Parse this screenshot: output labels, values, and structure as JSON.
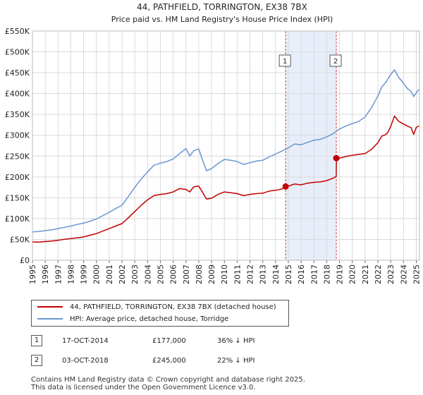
{
  "chart_data": {
    "type": "line",
    "title": "44, PATHFIELD, TORRINGTON, EX38 7BX",
    "subtitle": "Price paid vs. HM Land Registry's House Price Index (HPI)",
    "xlim": [
      1995.0,
      2025.25
    ],
    "ylim": [
      0,
      550000
    ],
    "yticks": [
      {
        "value": 0,
        "label": "£0"
      },
      {
        "value": 50000,
        "label": "£50K"
      },
      {
        "value": 100000,
        "label": "£100K"
      },
      {
        "value": 150000,
        "label": "£150K"
      },
      {
        "value": 200000,
        "label": "£200K"
      },
      {
        "value": 250000,
        "label": "£250K"
      },
      {
        "value": 300000,
        "label": "£300K"
      },
      {
        "value": 350000,
        "label": "£350K"
      },
      {
        "value": 400000,
        "label": "£400K"
      },
      {
        "value": 450000,
        "label": "£450K"
      },
      {
        "value": 500000,
        "label": "£500K"
      },
      {
        "value": 550000,
        "label": "£550K"
      }
    ],
    "xticks": [
      "1995",
      "1996",
      "1997",
      "1998",
      "1999",
      "2000",
      "2001",
      "2002",
      "2003",
      "2004",
      "2005",
      "2006",
      "2007",
      "2008",
      "2009",
      "2010",
      "2011",
      "2012",
      "2013",
      "2014",
      "2015",
      "2016",
      "2017",
      "2018",
      "2019",
      "2020",
      "2021",
      "2022",
      "2023",
      "2024",
      "2025"
    ],
    "grid": true,
    "shaded_region": {
      "from": 2014.79,
      "to": 2018.75,
      "color": "#e8eef9"
    },
    "series": [
      {
        "name": "44, PATHFIELD, TORRINGTON, EX38 7BX (detached house)",
        "color": "#c00000",
        "x": [
          1995.0,
          1995.5,
          1996.0,
          1996.5,
          1997.0,
          1997.5,
          1998.0,
          1998.5,
          1999.0,
          1999.5,
          2000.0,
          2000.5,
          2001.0,
          2001.5,
          2002.0,
          2002.5,
          2003.0,
          2003.5,
          2004.0,
          2004.5,
          2005.0,
          2005.5,
          2006.0,
          2006.5,
          2007.0,
          2007.3,
          2007.6,
          2008.0,
          2008.3,
          2008.6,
          2009.0,
          2009.5,
          2010.0,
          2010.5,
          2011.0,
          2011.5,
          2012.0,
          2012.5,
          2013.0,
          2013.5,
          2014.0,
          2014.5,
          2014.79,
          2015.0,
          2015.5,
          2016.0,
          2016.5,
          2017.0,
          2017.5,
          2018.0,
          2018.5,
          2018.74,
          2018.76,
          2019.0,
          2019.5,
          2020.0,
          2020.5,
          2021.0,
          2021.5,
          2022.0,
          2022.3,
          2022.6,
          2022.8,
          2023.0,
          2023.3,
          2023.6,
          2024.0,
          2024.3,
          2024.6,
          2024.8,
          2025.0,
          2025.2
        ],
        "y": [
          44000,
          43500,
          45000,
          46000,
          48000,
          50500,
          52000,
          54000,
          56000,
          60000,
          64000,
          70000,
          76000,
          82000,
          88000,
          102000,
          117000,
          132000,
          145000,
          155000,
          158000,
          160000,
          164000,
          172000,
          170000,
          164000,
          176000,
          178000,
          163000,
          147000,
          149000,
          158000,
          164000,
          162000,
          160000,
          155000,
          158000,
          160000,
          161000,
          166000,
          168000,
          171000,
          177000,
          178000,
          183000,
          181000,
          185000,
          187000,
          188000,
          191000,
          197000,
          201000,
          240000,
          245000,
          249000,
          252000,
          254000,
          256000,
          266000,
          282000,
          298000,
          301000,
          308000,
          321000,
          346000,
          334000,
          327000,
          322000,
          318000,
          302000,
          319000,
          322000
        ]
      },
      {
        "name": "HPI: Average price, detached house, Torridge",
        "color": "#6a96d2",
        "x": [
          1995.0,
          1995.5,
          1996.0,
          1996.5,
          1997.0,
          1997.5,
          1998.0,
          1998.5,
          1999.0,
          1999.5,
          2000.0,
          2000.5,
          2001.0,
          2001.5,
          2002.0,
          2002.5,
          2003.0,
          2003.5,
          2004.0,
          2004.5,
          2005.0,
          2005.5,
          2006.0,
          2006.5,
          2007.0,
          2007.3,
          2007.6,
          2008.0,
          2008.3,
          2008.6,
          2009.0,
          2009.5,
          2010.0,
          2010.5,
          2011.0,
          2011.5,
          2012.0,
          2012.5,
          2013.0,
          2013.5,
          2014.0,
          2014.5,
          2015.0,
          2015.5,
          2016.0,
          2016.5,
          2017.0,
          2017.5,
          2018.0,
          2018.5,
          2019.0,
          2019.5,
          2020.0,
          2020.5,
          2021.0,
          2021.5,
          2022.0,
          2022.3,
          2022.6,
          2022.8,
          2023.0,
          2023.3,
          2023.6,
          2024.0,
          2024.3,
          2024.6,
          2024.8,
          2025.0,
          2025.2
        ],
        "y": [
          68000,
          69000,
          71000,
          73000,
          76000,
          79000,
          82000,
          86000,
          89000,
          94000,
          99000,
          107000,
          115000,
          124000,
          132000,
          153000,
          175000,
          195000,
          212000,
          228000,
          233000,
          237000,
          243000,
          256000,
          268000,
          250000,
          263000,
          267000,
          240000,
          215000,
          220000,
          232000,
          242000,
          240000,
          237000,
          230000,
          234000,
          238000,
          240000,
          248000,
          255000,
          262000,
          270000,
          279000,
          277000,
          283000,
          288000,
          290000,
          296000,
          304000,
          315000,
          322000,
          328000,
          333000,
          344000,
          366000,
          394000,
          416000,
          426000,
          436000,
          446000,
          457000,
          440000,
          425000,
          412000,
          405000,
          393000,
          402000,
          410000
        ]
      }
    ],
    "markers": [
      {
        "id": "1",
        "x": 2014.79,
        "y": 177000
      },
      {
        "id": "2",
        "x": 2018.75,
        "y": 245000
      }
    ]
  },
  "legend": {
    "items": [
      {
        "label": "44, PATHFIELD, TORRINGTON, EX38 7BX (detached house)",
        "color": "#c00000"
      },
      {
        "label": "HPI: Average price, detached house, Torridge",
        "color": "#6a96d2"
      }
    ]
  },
  "transactions": [
    {
      "id": "1",
      "date": "17-OCT-2014",
      "price": "£177,000",
      "hpi": "36% ↓ HPI"
    },
    {
      "id": "2",
      "date": "03-OCT-2018",
      "price": "£245,000",
      "hpi": "22% ↓ HPI"
    }
  ],
  "footer": {
    "line1": "Contains HM Land Registry data © Crown copyright and database right 2025.",
    "line2": "This data is licensed under the Open Government Licence v3.0."
  }
}
